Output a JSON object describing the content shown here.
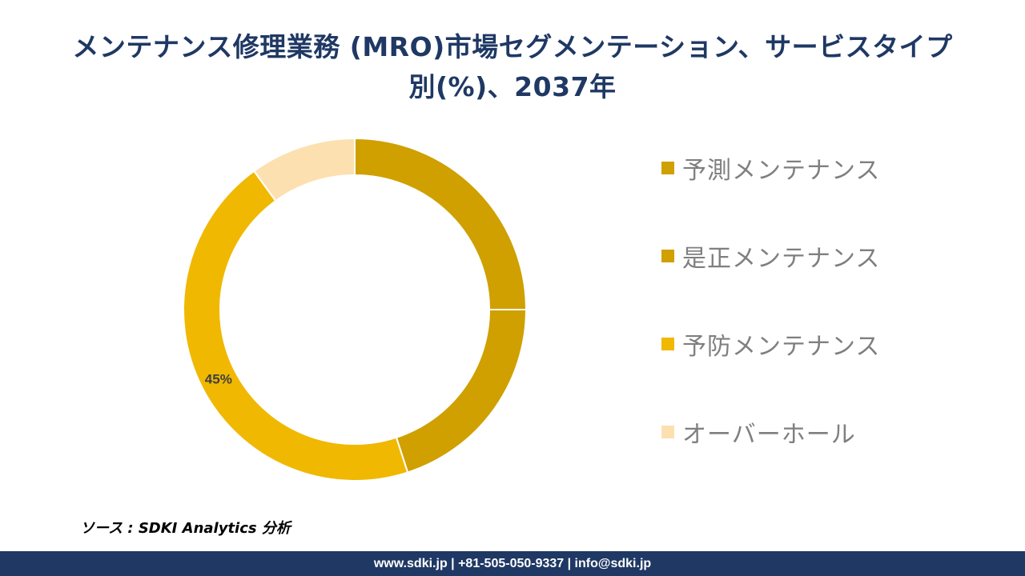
{
  "title_line1": "メンテナンス修理業務 (MRO)市場セグメンテーション、サービスタイプ",
  "title_line2": "別(%)、2037年",
  "source": "ソース : SDKI Analytics 分析",
  "footer": "www.sdki.jp | +81-505-050-9337 | info@sdki.jp",
  "chart_data": {
    "type": "pie",
    "donut": true,
    "categories": [
      "予測メンテナンス",
      "是正メンテナンス",
      "予防メンテナンス",
      "オーバーホール"
    ],
    "values": [
      25,
      20,
      45,
      10
    ],
    "data_labels": [
      "",
      "",
      "45%",
      ""
    ],
    "colors": [
      "#cfa000",
      "#cfa000",
      "#f0b800",
      "#fde0b0"
    ],
    "legend_position": "right",
    "start_angle_deg": 0,
    "direction": "clockwise"
  }
}
